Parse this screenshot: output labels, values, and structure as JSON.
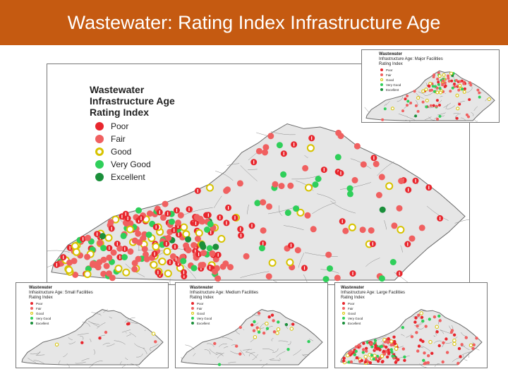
{
  "slide": {
    "title": "Wastewater: Rating Index Infrastructure Age"
  },
  "main_map": {
    "legend_title_lines": [
      "Wastewater",
      "Infrastructure Age",
      "Rating Index"
    ],
    "legend_items": [
      {
        "label": "Poor",
        "color": "#e8262d",
        "icon": "poor-marker-icon"
      },
      {
        "label": "Fair",
        "color": "#f06060",
        "icon": "fair-marker-icon"
      },
      {
        "label": "Good",
        "color": "#d7c300",
        "icon": "good-marker-icon"
      },
      {
        "label": "Very Good",
        "color": "#2fcf5a",
        "icon": "very-good-marker-icon"
      },
      {
        "label": "Excellent",
        "color": "#1a8f3a",
        "icon": "excellent-marker-icon"
      }
    ]
  },
  "inset_maps": [
    {
      "id": "major",
      "legend_title_lines": [
        "Wastewater",
        "Infrastructure Age: Major Facilities",
        "Rating Index"
      ],
      "legend_labels": [
        "Poor",
        "Fair",
        "Good",
        "Very Good",
        "Excellent"
      ]
    },
    {
      "id": "small",
      "legend_title_lines": [
        "Wastewater",
        "Infrastructure Age: Small Facilities",
        "Rating Index"
      ],
      "legend_labels": [
        "Poor",
        "Fair",
        "Good",
        "Very Good",
        "Excellent"
      ]
    },
    {
      "id": "medium",
      "legend_title_lines": [
        "Wastewater",
        "Infrastructure Age: Medium Facilities",
        "Rating Index"
      ],
      "legend_labels": [
        "Poor",
        "Fair",
        "Good",
        "Very Good",
        "Excellent"
      ]
    },
    {
      "id": "large",
      "legend_title_lines": [
        "Wastewater",
        "Infrastructure Age: Large Facilities",
        "Rating Index"
      ],
      "legend_labels": [
        "Poor",
        "Fair",
        "Good",
        "Very Good",
        "Excellent"
      ]
    }
  ],
  "colors": {
    "title_bar": "#c55a11",
    "state_fill": "#e6e6e6",
    "county_line": "#8a8a8a"
  }
}
